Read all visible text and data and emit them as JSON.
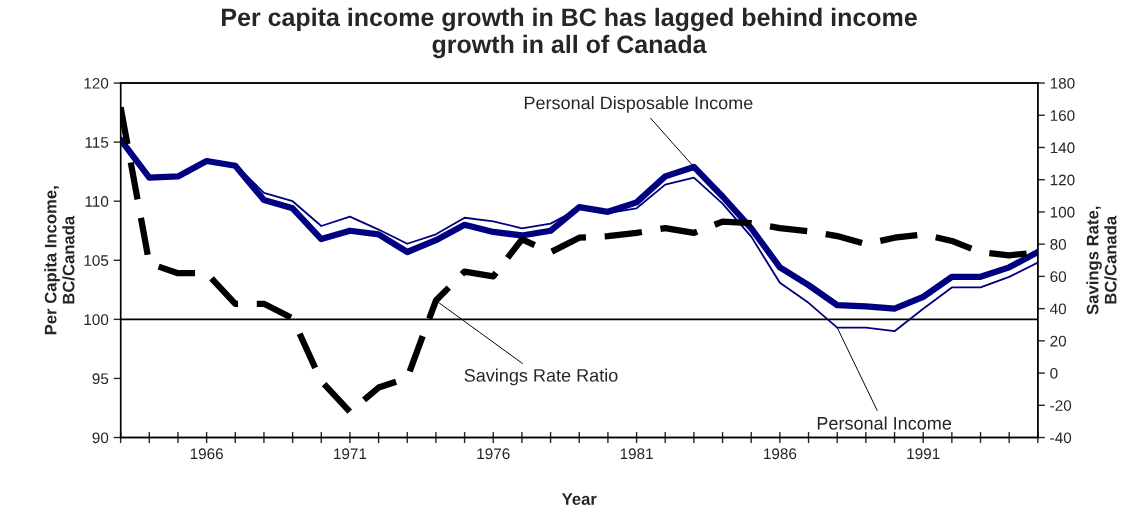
{
  "chart_data": {
    "type": "line",
    "title": "Per capita income growth in BC has lagged behind income\ngrowth in all of Canada",
    "xlabel": "Year",
    "ylabel": "Per Capita Income,\nBC/Canada",
    "y2label": "Savings Rate,\nBC/Canada",
    "x": [
      1963,
      1964,
      1965,
      1966,
      1967,
      1968,
      1969,
      1970,
      1971,
      1972,
      1973,
      1974,
      1975,
      1976,
      1977,
      1978,
      1979,
      1980,
      1981,
      1982,
      1983,
      1984,
      1985,
      1986,
      1987,
      1988,
      1989,
      1990,
      1991,
      1992,
      1993,
      1994,
      1995
    ],
    "series": [
      {
        "name": "Personal Disposable Income",
        "color": "#000080",
        "line_style": "solid",
        "values": [
          115.2,
          112.0,
          112.1,
          113.4,
          113.0,
          110.1,
          109.4,
          106.8,
          107.5,
          107.2,
          105.7,
          106.7,
          108.0,
          107.4,
          107.1,
          107.5,
          109.5,
          109.1,
          109.9,
          112.1,
          112.9,
          110.4,
          107.7,
          104.4,
          102.9,
          101.2,
          101.1,
          100.9,
          101.9,
          103.6,
          103.6,
          104.4,
          105.7
        ]
      },
      {
        "name": "Personal Income",
        "color": "#000080",
        "line_style": "solid",
        "values": [
          115.2,
          112.0,
          112.2,
          113.4,
          113.1,
          110.7,
          110.0,
          107.9,
          108.7,
          107.6,
          106.4,
          107.2,
          108.6,
          108.3,
          107.7,
          108.1,
          109.4,
          109.0,
          109.4,
          111.4,
          112.0,
          109.8,
          107.0,
          103.1,
          101.4,
          99.3,
          99.3,
          99.0,
          100.9,
          102.7,
          102.7,
          103.6,
          104.8
        ]
      },
      {
        "name": "Savings Rate Ratio",
        "color": "#000000",
        "line_style": "dashed",
        "axis": "y2",
        "values": [
          165,
          68,
          62,
          62,
          43,
          43,
          34,
          -5,
          -24,
          -9,
          -3,
          45,
          63,
          60,
          83,
          75,
          84,
          85,
          87,
          90,
          87,
          94,
          93,
          90,
          88,
          85,
          80,
          84,
          86,
          82,
          75,
          73,
          75
        ]
      }
    ],
    "xlim": [
      1963,
      1995
    ],
    "xticks": [
      {
        "value": 1963,
        "label": null
      },
      {
        "value": 1964,
        "label": null
      },
      {
        "value": 1965,
        "label": null
      },
      1966,
      {
        "value": 1967,
        "label": null
      },
      {
        "value": 1968,
        "label": null
      },
      {
        "value": 1969,
        "label": null
      },
      {
        "value": 1970,
        "label": null
      },
      1971,
      {
        "value": 1972,
        "label": null
      },
      {
        "value": 1973,
        "label": null
      },
      {
        "value": 1974,
        "label": null
      },
      {
        "value": 1975,
        "label": null
      },
      1976,
      {
        "value": 1977,
        "label": null
      },
      {
        "value": 1978,
        "label": null
      },
      {
        "value": 1979,
        "label": null
      },
      {
        "value": 1980,
        "label": null
      },
      1981,
      {
        "value": 1982,
        "label": null
      },
      {
        "value": 1983,
        "label": null
      },
      {
        "value": 1984,
        "label": null
      },
      {
        "value": 1985,
        "label": null
      },
      1986,
      {
        "value": 1987,
        "label": null
      },
      {
        "value": 1988,
        "label": null
      },
      {
        "value": 1989,
        "label": null
      },
      {
        "value": 1990,
        "label": null
      },
      1991,
      {
        "value": 1992,
        "label": null
      },
      {
        "value": 1993,
        "label": null
      },
      {
        "value": 1994,
        "label": null
      },
      {
        "value": 1995,
        "label": null
      }
    ],
    "ylim": [
      90,
      120
    ],
    "yticks": [
      90,
      95,
      100,
      105,
      110,
      115,
      120
    ],
    "y2lim": [
      -40,
      180
    ],
    "y2ticks": [
      -40,
      -20,
      0,
      20,
      40,
      60,
      80,
      100,
      120,
      140,
      160,
      180
    ],
    "ref_lines": [
      {
        "axis": "y",
        "value": 100,
        "color": "#000000",
        "line_style": "solid"
      }
    ],
    "grid": false,
    "legend": false
  }
}
